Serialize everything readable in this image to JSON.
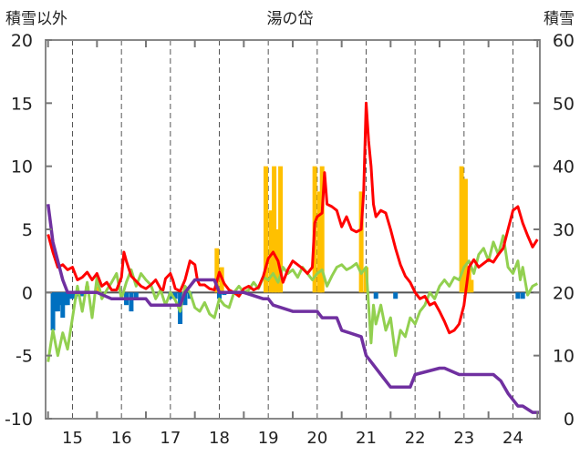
{
  "chart_data": {
    "type": "line",
    "title": "湯の岱",
    "ylabel_left": "積雪以外",
    "ylabel_right": "積雪",
    "ylim_left": [
      -10,
      20
    ],
    "ylim_right": [
      0,
      60
    ],
    "left_ticks": [
      "20",
      "15",
      "10",
      "5",
      "0",
      "-5",
      "-10"
    ],
    "right_ticks": [
      "60",
      "50",
      "40",
      "30",
      "20",
      "10",
      "0"
    ],
    "x_tick_labels": [
      "15",
      "16",
      "17",
      "18",
      "19",
      "20",
      "21",
      "22",
      "23",
      "24"
    ],
    "x_tick_positions": [
      15,
      16,
      17,
      18,
      19,
      20,
      21,
      22,
      23,
      24
    ],
    "xlim": [
      14.45,
      24.55
    ],
    "grid": "vertical dashed at each year",
    "series": [
      {
        "color": "#ff0000",
        "axis": "left",
        "points": [
          [
            14.5,
            4.6
          ],
          [
            14.6,
            3.2
          ],
          [
            14.7,
            2.0
          ],
          [
            14.8,
            2.2
          ],
          [
            14.9,
            1.8
          ],
          [
            15.0,
            2.0
          ],
          [
            15.1,
            1.0
          ],
          [
            15.2,
            1.2
          ],
          [
            15.3,
            1.6
          ],
          [
            15.4,
            1.0
          ],
          [
            15.5,
            1.5
          ],
          [
            15.6,
            0.5
          ],
          [
            15.7,
            0.8
          ],
          [
            15.8,
            0.2
          ],
          [
            15.9,
            0.2
          ],
          [
            16.0,
            1.2
          ],
          [
            16.05,
            3.2
          ],
          [
            16.1,
            2.5
          ],
          [
            16.2,
            1.3
          ],
          [
            16.3,
            0.9
          ],
          [
            16.4,
            0.5
          ],
          [
            16.5,
            0.3
          ],
          [
            16.6,
            0.6
          ],
          [
            16.7,
            1.0
          ],
          [
            16.8,
            0.3
          ],
          [
            16.85,
            0.2
          ],
          [
            16.9,
            1.1
          ],
          [
            17.0,
            1.5
          ],
          [
            17.05,
            1.0
          ],
          [
            17.1,
            0.3
          ],
          [
            17.2,
            0.1
          ],
          [
            17.3,
            1.0
          ],
          [
            17.4,
            2.5
          ],
          [
            17.5,
            2.2
          ],
          [
            17.55,
            1.0
          ],
          [
            17.6,
            0.6
          ],
          [
            17.7,
            0.6
          ],
          [
            17.8,
            0.3
          ],
          [
            17.9,
            0.2
          ],
          [
            18.0,
            1.6
          ],
          [
            18.1,
            0.7
          ],
          [
            18.2,
            0.2
          ],
          [
            18.3,
            0.0
          ],
          [
            18.4,
            -0.3
          ],
          [
            18.5,
            0.3
          ],
          [
            18.6,
            0.5
          ],
          [
            18.7,
            0.2
          ],
          [
            18.8,
            0.4
          ],
          [
            18.9,
            1.3
          ],
          [
            19.0,
            2.7
          ],
          [
            19.1,
            3.2
          ],
          [
            19.2,
            2.5
          ],
          [
            19.3,
            0.8
          ],
          [
            19.4,
            1.8
          ],
          [
            19.5,
            2.5
          ],
          [
            19.6,
            2.2
          ],
          [
            19.7,
            1.9
          ],
          [
            19.8,
            1.5
          ],
          [
            19.9,
            2.0
          ],
          [
            19.95,
            5.5
          ],
          [
            20.0,
            6.0
          ],
          [
            20.1,
            6.3
          ],
          [
            20.15,
            9.5
          ],
          [
            20.2,
            7.0
          ],
          [
            20.3,
            6.8
          ],
          [
            20.4,
            6.5
          ],
          [
            20.5,
            5.2
          ],
          [
            20.6,
            6.0
          ],
          [
            20.7,
            5.0
          ],
          [
            20.8,
            4.8
          ],
          [
            20.9,
            5.0
          ],
          [
            20.95,
            8.0
          ],
          [
            21.0,
            15.0
          ],
          [
            21.05,
            12.0
          ],
          [
            21.1,
            10.0
          ],
          [
            21.15,
            7.0
          ],
          [
            21.2,
            6.0
          ],
          [
            21.3,
            6.5
          ],
          [
            21.4,
            6.3
          ],
          [
            21.5,
            5.0
          ],
          [
            21.6,
            3.5
          ],
          [
            21.7,
            2.2
          ],
          [
            21.8,
            1.3
          ],
          [
            21.9,
            0.8
          ],
          [
            22.0,
            0.0
          ],
          [
            22.1,
            -0.5
          ],
          [
            22.2,
            -0.3
          ],
          [
            22.3,
            -1.0
          ],
          [
            22.4,
            -0.8
          ],
          [
            22.5,
            -1.5
          ],
          [
            22.6,
            -2.3
          ],
          [
            22.7,
            -3.2
          ],
          [
            22.8,
            -3.0
          ],
          [
            22.9,
            -2.5
          ],
          [
            23.0,
            -1.0
          ],
          [
            23.1,
            2.0
          ],
          [
            23.2,
            2.6
          ],
          [
            23.3,
            2.0
          ],
          [
            23.4,
            2.3
          ],
          [
            23.5,
            2.6
          ],
          [
            23.6,
            2.4
          ],
          [
            23.7,
            3.0
          ],
          [
            23.8,
            3.5
          ],
          [
            23.9,
            5.0
          ],
          [
            24.0,
            6.5
          ],
          [
            24.1,
            6.8
          ],
          [
            24.2,
            5.5
          ],
          [
            24.3,
            4.5
          ],
          [
            24.4,
            3.6
          ],
          [
            24.5,
            4.2
          ]
        ]
      },
      {
        "color": "#92d050",
        "axis": "left",
        "points": [
          [
            14.5,
            -5.5
          ],
          [
            14.6,
            -3.0
          ],
          [
            14.7,
            -5.0
          ],
          [
            14.8,
            -3.2
          ],
          [
            14.9,
            -4.5
          ],
          [
            15.0,
            -2.0
          ],
          [
            15.1,
            0.5
          ],
          [
            15.2,
            -1.5
          ],
          [
            15.3,
            0.8
          ],
          [
            15.4,
            -2.0
          ],
          [
            15.5,
            1.2
          ],
          [
            15.6,
            -0.5
          ],
          [
            15.7,
            0.2
          ],
          [
            15.8,
            0.8
          ],
          [
            15.9,
            1.5
          ],
          [
            16.0,
            -0.5
          ],
          [
            16.1,
            0.8
          ],
          [
            16.2,
            1.8
          ],
          [
            16.3,
            0.5
          ],
          [
            16.4,
            1.5
          ],
          [
            16.5,
            1.0
          ],
          [
            16.6,
            0.6
          ],
          [
            16.7,
            -0.5
          ],
          [
            16.8,
            0.2
          ],
          [
            16.9,
            -1.0
          ],
          [
            17.0,
            0.0
          ],
          [
            17.1,
            -0.6
          ],
          [
            17.2,
            -1.5
          ],
          [
            17.3,
            0.5
          ],
          [
            17.4,
            0.0
          ],
          [
            17.5,
            -1.2
          ],
          [
            17.6,
            -1.5
          ],
          [
            17.7,
            -0.8
          ],
          [
            17.8,
            -1.7
          ],
          [
            17.9,
            -2.0
          ],
          [
            18.0,
            -0.5
          ],
          [
            18.1,
            -1.0
          ],
          [
            18.2,
            -1.2
          ],
          [
            18.3,
            0.0
          ],
          [
            18.4,
            0.5
          ],
          [
            18.5,
            0.0
          ],
          [
            18.6,
            0.2
          ],
          [
            18.7,
            0.8
          ],
          [
            18.8,
            0.3
          ],
          [
            18.9,
            1.2
          ],
          [
            19.0,
            1.0
          ],
          [
            19.1,
            1.5
          ],
          [
            19.2,
            0.8
          ],
          [
            19.3,
            2.0
          ],
          [
            19.4,
            1.5
          ],
          [
            19.5,
            1.8
          ],
          [
            19.6,
            1.2
          ],
          [
            19.7,
            2.0
          ],
          [
            19.8,
            1.5
          ],
          [
            19.9,
            1.0
          ],
          [
            20.0,
            1.5
          ],
          [
            20.1,
            1.8
          ],
          [
            20.2,
            0.5
          ],
          [
            20.3,
            1.3
          ],
          [
            20.4,
            2.0
          ],
          [
            20.5,
            2.2
          ],
          [
            20.6,
            1.8
          ],
          [
            20.7,
            2.0
          ],
          [
            20.8,
            2.3
          ],
          [
            20.9,
            1.5
          ],
          [
            21.0,
            2.0
          ],
          [
            21.1,
            -4.0
          ],
          [
            21.15,
            -1.0
          ],
          [
            21.2,
            -2.5
          ],
          [
            21.3,
            -1.0
          ],
          [
            21.4,
            -3.0
          ],
          [
            21.5,
            -2.0
          ],
          [
            21.6,
            -5.0
          ],
          [
            21.7,
            -3.0
          ],
          [
            21.8,
            -3.5
          ],
          [
            21.9,
            -2.0
          ],
          [
            22.0,
            -2.5
          ],
          [
            22.1,
            -1.5
          ],
          [
            22.2,
            -1.0
          ],
          [
            22.3,
            0.0
          ],
          [
            22.4,
            -0.5
          ],
          [
            22.5,
            0.5
          ],
          [
            22.6,
            1.0
          ],
          [
            22.7,
            0.5
          ],
          [
            22.8,
            1.2
          ],
          [
            22.9,
            1.0
          ],
          [
            23.0,
            2.0
          ],
          [
            23.1,
            2.5
          ],
          [
            23.2,
            1.5
          ],
          [
            23.3,
            3.0
          ],
          [
            23.4,
            3.5
          ],
          [
            23.5,
            2.5
          ],
          [
            23.6,
            4.0
          ],
          [
            23.7,
            3.0
          ],
          [
            23.8,
            4.5
          ],
          [
            23.9,
            2.0
          ],
          [
            24.0,
            1.5
          ],
          [
            24.1,
            2.5
          ],
          [
            24.15,
            1.0
          ],
          [
            24.2,
            2.0
          ],
          [
            24.3,
            -0.2
          ],
          [
            24.4,
            0.5
          ],
          [
            24.5,
            0.7
          ]
        ]
      },
      {
        "color": "#7030a0",
        "axis": "right",
        "points": [
          [
            14.5,
            34
          ],
          [
            14.55,
            31
          ],
          [
            14.6,
            28
          ],
          [
            14.7,
            25
          ],
          [
            14.8,
            22
          ],
          [
            14.9,
            20
          ],
          [
            15.0,
            20
          ],
          [
            15.5,
            20
          ],
          [
            15.8,
            19
          ],
          [
            16.0,
            19
          ],
          [
            16.5,
            19
          ],
          [
            16.6,
            18
          ],
          [
            17.0,
            18
          ],
          [
            17.2,
            18
          ],
          [
            17.3,
            20
          ],
          [
            17.5,
            22
          ],
          [
            17.6,
            22
          ],
          [
            17.9,
            22
          ],
          [
            18.0,
            20
          ],
          [
            18.5,
            20
          ],
          [
            18.9,
            19
          ],
          [
            19.0,
            19
          ],
          [
            19.1,
            18
          ],
          [
            19.5,
            17
          ],
          [
            20.0,
            17
          ],
          [
            20.1,
            16
          ],
          [
            20.4,
            16
          ],
          [
            20.5,
            14
          ],
          [
            20.9,
            13
          ],
          [
            21.0,
            10
          ],
          [
            21.1,
            9
          ],
          [
            21.3,
            7
          ],
          [
            21.5,
            5
          ],
          [
            21.6,
            5
          ],
          [
            21.9,
            5
          ],
          [
            22.0,
            7
          ],
          [
            22.5,
            8
          ],
          [
            22.6,
            8
          ],
          [
            22.9,
            7
          ],
          [
            23.0,
            7
          ],
          [
            23.6,
            7
          ],
          [
            23.75,
            6
          ],
          [
            23.9,
            4
          ],
          [
            24.0,
            3
          ],
          [
            24.1,
            2
          ],
          [
            24.2,
            2
          ],
          [
            24.4,
            1
          ],
          [
            24.55,
            1
          ]
        ]
      },
      {
        "color": "#ffc000",
        "axis": "right",
        "style": "bars",
        "bars": [
          [
            15.3,
            21
          ],
          [
            15.5,
            21
          ],
          [
            17.95,
            27
          ],
          [
            18.05,
            24
          ],
          [
            18.95,
            40
          ],
          [
            19.05,
            33
          ],
          [
            19.12,
            40
          ],
          [
            19.18,
            30
          ],
          [
            19.25,
            40
          ],
          [
            19.95,
            40
          ],
          [
            20.05,
            36
          ],
          [
            20.1,
            40
          ],
          [
            20.9,
            36
          ],
          [
            21.0,
            24
          ],
          [
            22.95,
            40
          ],
          [
            23.03,
            38
          ],
          [
            23.1,
            24
          ],
          [
            23.15,
            22
          ]
        ]
      },
      {
        "color": "#0070c0",
        "axis": "left",
        "style": "bars",
        "bars": [
          [
            14.6,
            -3.0
          ],
          [
            14.65,
            -1.5
          ],
          [
            14.7,
            -1.5
          ],
          [
            14.75,
            -1.0
          ],
          [
            14.8,
            -2.0
          ],
          [
            14.85,
            -1.0
          ],
          [
            14.9,
            -1.0
          ],
          [
            14.95,
            -0.5
          ],
          [
            15.0,
            -0.5
          ],
          [
            15.05,
            -0.5
          ],
          [
            15.1,
            -0.3
          ],
          [
            15.15,
            -0.3
          ],
          [
            15.2,
            -0.3
          ],
          [
            16.1,
            -1.0
          ],
          [
            16.2,
            -1.5
          ],
          [
            16.3,
            -0.5
          ],
          [
            17.0,
            -0.5
          ],
          [
            17.1,
            -0.5
          ],
          [
            17.2,
            -2.5
          ],
          [
            17.3,
            -1.0
          ],
          [
            17.4,
            -0.5
          ],
          [
            18.0,
            -0.5
          ],
          [
            18.1,
            -0.2
          ],
          [
            21.2,
            -0.5
          ],
          [
            21.6,
            -0.5
          ],
          [
            24.1,
            -0.5
          ],
          [
            24.2,
            -0.5
          ]
        ]
      }
    ]
  }
}
